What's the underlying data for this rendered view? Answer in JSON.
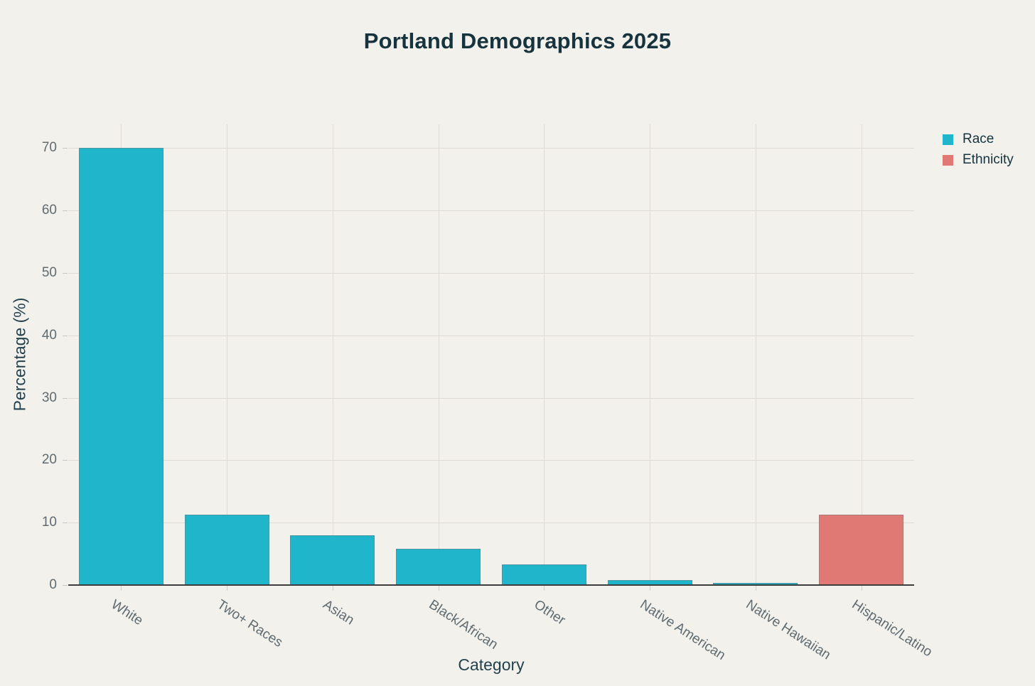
{
  "title": "Portland Demographics 2025",
  "chart_data": {
    "type": "bar",
    "title": "Portland Demographics 2025",
    "xlabel": "Category",
    "ylabel": "Percentage (%)",
    "categories": [
      "White",
      "Two+ Races",
      "Asian",
      "Black/African",
      "Other",
      "Native American",
      "Native Hawaiian",
      "Hispanic/Latino"
    ],
    "series": [
      {
        "name": "Race",
        "color": "#1fb5cb",
        "values": [
          70.1,
          11.3,
          8.0,
          5.8,
          3.3,
          0.8,
          0.4,
          null
        ]
      },
      {
        "name": "Ethnicity",
        "color": "#e07874",
        "values": [
          null,
          null,
          null,
          null,
          null,
          null,
          null,
          11.3
        ]
      }
    ],
    "ylim": [
      0,
      73.8
    ],
    "yticks": [
      0,
      10,
      20,
      30,
      40,
      50,
      60,
      70
    ],
    "grid": true,
    "legend_position": "top-right",
    "xtick_angle_deg": 33
  },
  "legend": {
    "items": [
      {
        "label": "Race",
        "color": "#1fb5cb"
      },
      {
        "label": "Ethnicity",
        "color": "#e07874"
      }
    ]
  },
  "colors": {
    "background": "#f2f1ec",
    "race_bar": "#1fb5cb",
    "ethnicity_bar": "#e07874",
    "title_text": "#16333e",
    "axis_title_text": "#24424d",
    "tick_text": "#5f6b70",
    "gridline": "#dedbd4",
    "axis_line": "#3d3d3d"
  }
}
